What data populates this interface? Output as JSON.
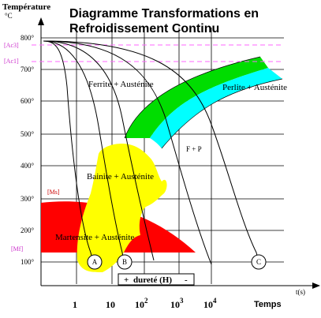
{
  "title": {
    "line1": "Diagramme Transformations en",
    "line2": "Refroidissement Continu"
  },
  "y_axis": {
    "label": "Température",
    "unit": "°C",
    "ticks": [
      "800°",
      "700°",
      "600°",
      "500°",
      "400°",
      "300°",
      "200°",
      "100°"
    ]
  },
  "x_axis": {
    "label": "Temps",
    "unit": "t(s)",
    "ticks": [
      {
        "base": "1",
        "exp": ""
      },
      {
        "base": "10",
        "exp": ""
      },
      {
        "base": "10",
        "exp": "2"
      },
      {
        "base": "10",
        "exp": "3"
      },
      {
        "base": "10",
        "exp": "4"
      }
    ]
  },
  "critical_lines": {
    "ac3": "[Ac3]",
    "ac1": "[Ac1]",
    "ms": "[Ms]",
    "mf": "[Mf]"
  },
  "regions": {
    "ferrite": "Ferrite + Austénite",
    "perlite": "Perlite + Austénite",
    "fp": "F + P",
    "bainite": "Bainite + Austénite",
    "martensite": "Martensite + Austénite"
  },
  "cooling_curves": [
    "A",
    "B",
    "C"
  ],
  "hardness_box": {
    "plus": "+",
    "label": "dureté (H)",
    "minus": "-"
  },
  "colors": {
    "ferrite": "#00dd00",
    "perlite": "#00ffff",
    "bainite": "#ffff00",
    "martensite": "#ff0000",
    "critical_line": "#ff66ff"
  }
}
